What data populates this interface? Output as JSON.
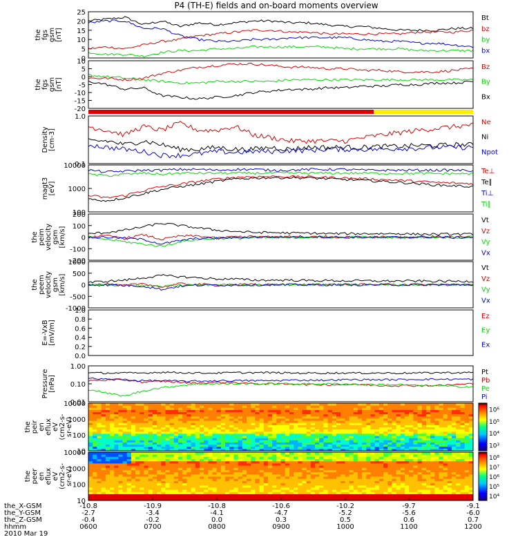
{
  "title": "P4 (TH-E) fields and on-board moments overview",
  "footer": {
    "date": "2010 Mar 19",
    "rows": [
      {
        "label": "the_X-GSM",
        "values": [
          "-10.8",
          "-10.9",
          "-10.8",
          "-10.6",
          "-10.2",
          "-9.7",
          "-9.1"
        ]
      },
      {
        "label": "the_Y-GSM",
        "values": [
          "-2.7",
          "-3.4",
          "-4.1",
          "-4.7",
          "-5.2",
          "-5.6",
          "-6.0"
        ]
      },
      {
        "label": "the_Z-GSM",
        "values": [
          "-0.4",
          "-0.2",
          "0.0",
          "0.3",
          "0.5",
          "0.6",
          "0.7"
        ]
      },
      {
        "label": "hhmm",
        "values": [
          "0600",
          "0700",
          "0800",
          "0900",
          "1000",
          "1100",
          "1200"
        ]
      }
    ]
  },
  "colors": {
    "black": "#000000",
    "red": "#dd0000",
    "green": "#00dd00",
    "blue": "#0000dd",
    "yellow": "#ffee00"
  },
  "chart_data": [
    {
      "id": "fgs_mag",
      "type": "line",
      "ylabel": [
        "the",
        "fgs",
        "gsm",
        "[nT]"
      ],
      "ylim": [
        0,
        25
      ],
      "log": false,
      "ticks": [
        "0",
        "5",
        "10",
        "15",
        "20",
        "25"
      ],
      "series": [
        {
          "name": "Bt",
          "color": "#000000",
          "values": [
            20,
            21,
            22,
            18,
            20,
            17,
            19,
            18,
            19,
            20,
            20,
            19,
            19,
            18,
            17,
            17,
            16,
            15,
            15,
            15,
            16,
            16
          ]
        },
        {
          "name": "bz",
          "color": "#dd0000",
          "values": [
            5,
            6,
            5,
            7,
            9,
            10,
            12,
            13,
            14,
            15,
            15,
            14,
            14,
            13,
            13,
            13,
            13,
            13,
            14,
            14,
            14,
            15
          ]
        },
        {
          "name": "by",
          "color": "#00dd00",
          "values": [
            3,
            2,
            2,
            1,
            3,
            4,
            4,
            5,
            5,
            6,
            6,
            6,
            6,
            6,
            5,
            5,
            5,
            5,
            4,
            4,
            4,
            4
          ]
        },
        {
          "name": "bx",
          "color": "#0000dd",
          "values": [
            19,
            20,
            20,
            16,
            16,
            12,
            10,
            9,
            9,
            10,
            10,
            11,
            11,
            11,
            11,
            10,
            9,
            9,
            8,
            8,
            7,
            6
          ]
        }
      ]
    },
    {
      "id": "fgs_comp",
      "type": "line",
      "ylabel": [
        "the",
        "fgs",
        "gsm",
        "[nT]"
      ],
      "ylim": [
        -20,
        10
      ],
      "log": false,
      "ticks": [
        "-20",
        "-15",
        "-10",
        "-5",
        "0",
        "5",
        "10"
      ],
      "series": [
        {
          "name": "Bz",
          "color": "#dd0000",
          "values": [
            -1,
            -1,
            -2,
            -1,
            2,
            4,
            6,
            7,
            8,
            8,
            7,
            6,
            6,
            5,
            5,
            4,
            4,
            3,
            3,
            3,
            4,
            5
          ]
        },
        {
          "name": "By",
          "color": "#00dd00",
          "values": [
            1,
            0,
            -1,
            -2,
            -3,
            -4,
            -4,
            -3,
            -3,
            -3,
            -3,
            -2,
            -2,
            -2,
            -2,
            -2,
            -2,
            -2,
            -2,
            -2,
            -2,
            -2
          ]
        },
        {
          "name": "Bx",
          "color": "#000000",
          "values": [
            -3,
            -5,
            -8,
            -7,
            -12,
            -13,
            -14,
            -13,
            -12,
            -10,
            -9,
            -8,
            -8,
            -7,
            -7,
            -6,
            -6,
            -5,
            -5,
            -4,
            -4,
            -3
          ]
        }
      ]
    },
    {
      "id": "density",
      "type": "line",
      "ylabel": [
        "Density",
        "[cm-3]"
      ],
      "ylim": [
        0.1,
        1.0
      ],
      "log": true,
      "ticks": [
        "0.1",
        "1.0"
      ],
      "series": [
        {
          "name": "Ne",
          "color": "#dd0000",
          "values": [
            0.6,
            0.5,
            0.4,
            0.6,
            0.5,
            0.7,
            0.5,
            0.5,
            0.6,
            0.4,
            0.35,
            0.3,
            0.3,
            0.3,
            0.3,
            0.35,
            0.4,
            0.45,
            0.5,
            0.55,
            0.6,
            0.65
          ]
        },
        {
          "name": "Ni",
          "color": "#000000",
          "values": [
            0.3,
            0.3,
            0.25,
            0.3,
            0.25,
            0.2,
            0.2,
            0.22,
            0.2,
            0.2,
            0.22,
            0.2,
            0.22,
            0.22,
            0.22,
            0.22,
            0.23,
            0.23,
            0.24,
            0.24,
            0.25,
            0.25
          ]
        },
        {
          "name": "Npot",
          "color": "#0000dd",
          "values": [
            0.25,
            0.22,
            0.2,
            0.18,
            0.15,
            0.15,
            0.16,
            0.18,
            0.17,
            0.18,
            0.18,
            0.19,
            0.19,
            0.2,
            0.2,
            0.2,
            0.2,
            0.21,
            0.21,
            0.22,
            0.22,
            0.22
          ]
        }
      ]
    },
    {
      "id": "temperature",
      "type": "line",
      "ylabel": [
        "magt3",
        "[eV]"
      ],
      "ylim": [
        100,
        10000
      ],
      "log": true,
      "ticks": [
        "100",
        "1000",
        "10000"
      ],
      "series": [
        {
          "name": "Te⊥",
          "color": "#dd0000",
          "values": [
            500,
            400,
            500,
            800,
            1200,
            1500,
            2000,
            2500,
            3000,
            3200,
            3200,
            3200,
            3100,
            3000,
            2800,
            2600,
            2400,
            2200,
            2000,
            1800,
            1700,
            1600
          ]
        },
        {
          "name": "Te∥",
          "color": "#000000",
          "values": [
            350,
            300,
            400,
            600,
            900,
            1200,
            1500,
            2000,
            2500,
            2800,
            2900,
            2900,
            2800,
            2600,
            2400,
            2200,
            2000,
            1800,
            1600,
            1400,
            1300,
            1200
          ]
        },
        {
          "name": "Ti⊥",
          "color": "#0000dd",
          "values": [
            6000,
            5000,
            5500,
            6000,
            6000,
            6500,
            6500,
            6000,
            6500,
            6500,
            6000,
            6000,
            6500,
            6500,
            6500,
            6000,
            6000,
            6000,
            6000,
            6000,
            6000,
            5800
          ]
        },
        {
          "name": "Ti∥",
          "color": "#00dd00",
          "values": [
            4000,
            3500,
            4000,
            4500,
            4000,
            4500,
            4500,
            4500,
            4500,
            4500,
            4500,
            4500,
            4500,
            4500,
            4500,
            4500,
            4400,
            4400,
            4400,
            4300,
            4300,
            4200
          ]
        }
      ]
    },
    {
      "id": "peim_vel",
      "type": "line",
      "ylabel": [
        "the",
        "peim",
        "velocity",
        "gsm",
        "[km/s]"
      ],
      "ylim": [
        -200,
        200
      ],
      "log": false,
      "ticks": [
        "-200",
        "-100",
        "0",
        "100",
        "200"
      ],
      "series": [
        {
          "name": "Vt",
          "color": "#000000",
          "values": [
            30,
            40,
            60,
            90,
            120,
            100,
            80,
            60,
            50,
            40,
            40,
            35,
            35,
            30,
            30,
            30,
            30,
            30,
            25,
            25,
            25,
            25
          ]
        },
        {
          "name": "Vz",
          "color": "#dd0000",
          "values": [
            5,
            10,
            -10,
            20,
            -20,
            10,
            10,
            -10,
            5,
            5,
            0,
            5,
            0,
            5,
            0,
            0,
            5,
            0,
            0,
            5,
            0,
            0
          ]
        },
        {
          "name": "Vy",
          "color": "#00dd00",
          "values": [
            0,
            -20,
            -40,
            -60,
            -80,
            -40,
            -20,
            -10,
            -10,
            -5,
            -5,
            -5,
            0,
            0,
            -5,
            0,
            0,
            -5,
            0,
            0,
            0,
            0
          ]
        },
        {
          "name": "Vx",
          "color": "#0000dd",
          "values": [
            -5,
            0,
            -10,
            -20,
            -60,
            -30,
            -10,
            -10,
            -5,
            0,
            0,
            0,
            5,
            0,
            0,
            0,
            -5,
            0,
            0,
            0,
            -5,
            0
          ]
        }
      ]
    },
    {
      "id": "peem_vel",
      "type": "line",
      "ylabel": [
        "the",
        "peem",
        "velocity",
        "gsm",
        "[km/s]"
      ],
      "ylim": [
        -1000,
        1000
      ],
      "log": false,
      "ticks": [
        "-1000",
        "-500",
        "0",
        "500",
        "1000"
      ],
      "series": [
        {
          "name": "Vt",
          "color": "#000000",
          "values": [
            100,
            150,
            200,
            300,
            400,
            350,
            300,
            250,
            250,
            200,
            200,
            200,
            180,
            180,
            170,
            170,
            160,
            160,
            160,
            150,
            150,
            150
          ]
        },
        {
          "name": "Vz",
          "color": "#dd0000",
          "values": [
            0,
            20,
            -40,
            60,
            -100,
            40,
            20,
            -20,
            10,
            0,
            10,
            0,
            0,
            10,
            0,
            0,
            10,
            0,
            0,
            0,
            0,
            0
          ]
        },
        {
          "name": "Vy",
          "color": "#00dd00",
          "values": [
            0,
            -10,
            -20,
            -40,
            -80,
            -30,
            -10,
            0,
            0,
            -10,
            0,
            0,
            0,
            0,
            0,
            0,
            0,
            0,
            0,
            0,
            0,
            0
          ]
        },
        {
          "name": "Vx",
          "color": "#0000dd",
          "values": [
            0,
            -10,
            -30,
            -60,
            -200,
            -60,
            -20,
            -10,
            -10,
            0,
            0,
            0,
            0,
            0,
            0,
            0,
            0,
            0,
            0,
            0,
            0,
            0
          ]
        }
      ]
    },
    {
      "id": "efield",
      "type": "line",
      "ylabel": [
        "E=-VxB",
        "[mV/m]"
      ],
      "ylim": [
        0,
        1
      ],
      "log": false,
      "ticks": [
        "0.0",
        "0.2",
        "0.4",
        "0.6",
        "0.8",
        "1.0"
      ],
      "series": [
        {
          "name": "Ez",
          "color": "#dd0000",
          "values": []
        },
        {
          "name": "Ey",
          "color": "#00dd00",
          "values": []
        },
        {
          "name": "Ex",
          "color": "#0000dd",
          "values": []
        }
      ]
    },
    {
      "id": "pressure",
      "type": "line",
      "ylabel": [
        "Pressure",
        "[nPa]"
      ],
      "ylim": [
        0.01,
        1.0
      ],
      "log": true,
      "ticks": [
        "0.01",
        "0.10",
        "1.00"
      ],
      "series": [
        {
          "name": "Pt",
          "color": "#000000",
          "values": [
            0.4,
            0.4,
            0.4,
            0.4,
            0.45,
            0.42,
            0.4,
            0.4,
            0.42,
            0.42,
            0.42,
            0.4,
            0.4,
            0.4,
            0.4,
            0.4,
            0.4,
            0.4,
            0.4,
            0.42,
            0.42,
            0.42
          ]
        },
        {
          "name": "Pb",
          "color": "#dd0000",
          "values": [
            0.15,
            0.16,
            0.18,
            0.12,
            0.14,
            0.12,
            0.11,
            0.12,
            0.12,
            0.1,
            0.1,
            0.1,
            0.09,
            0.09,
            0.09,
            0.09,
            0.08,
            0.08,
            0.08,
            0.08,
            0.09,
            0.1
          ]
        },
        {
          "name": "Pe",
          "color": "#00dd00",
          "values": [
            0.05,
            0.03,
            0.02,
            0.04,
            0.06,
            0.08,
            0.1,
            0.1,
            0.1,
            0.1,
            0.1,
            0.1,
            0.1,
            0.1,
            0.1,
            0.09,
            0.09,
            0.09,
            0.08,
            0.08,
            0.07,
            0.07
          ]
        },
        {
          "name": "Pi",
          "color": "#0000dd",
          "values": [
            0.2,
            0.18,
            0.16,
            0.15,
            0.15,
            0.14,
            0.14,
            0.15,
            0.15,
            0.15,
            0.15,
            0.16,
            0.16,
            0.16,
            0.17,
            0.17,
            0.17,
            0.17,
            0.18,
            0.18,
            0.18,
            0.18
          ]
        }
      ]
    },
    {
      "id": "peir_efflux",
      "type": "heatmap",
      "ylabel": [
        "the",
        "peir",
        "en",
        "eflux",
        "eV",
        "(cm2-s-",
        "sr-eV)"
      ],
      "ylim": [
        10,
        10000
      ],
      "log": true,
      "ticks": [
        "10",
        "100",
        "1000",
        "10000"
      ],
      "colorbar_ticks": [
        "10³",
        "10⁴",
        "10⁵",
        "10⁶"
      ]
    },
    {
      "id": "peer_efflux",
      "type": "heatmap",
      "ylabel": [
        "the",
        "peer",
        "en",
        "eflux",
        "eV",
        "(cm2-s-",
        "sr-eV)"
      ],
      "ylim": [
        10,
        10000
      ],
      "log": true,
      "ticks": [
        "10",
        "100",
        "1000",
        "10000"
      ],
      "colorbar_ticks": [
        "10⁴",
        "10⁵",
        "10⁶",
        "10⁷",
        "10⁸"
      ]
    }
  ]
}
